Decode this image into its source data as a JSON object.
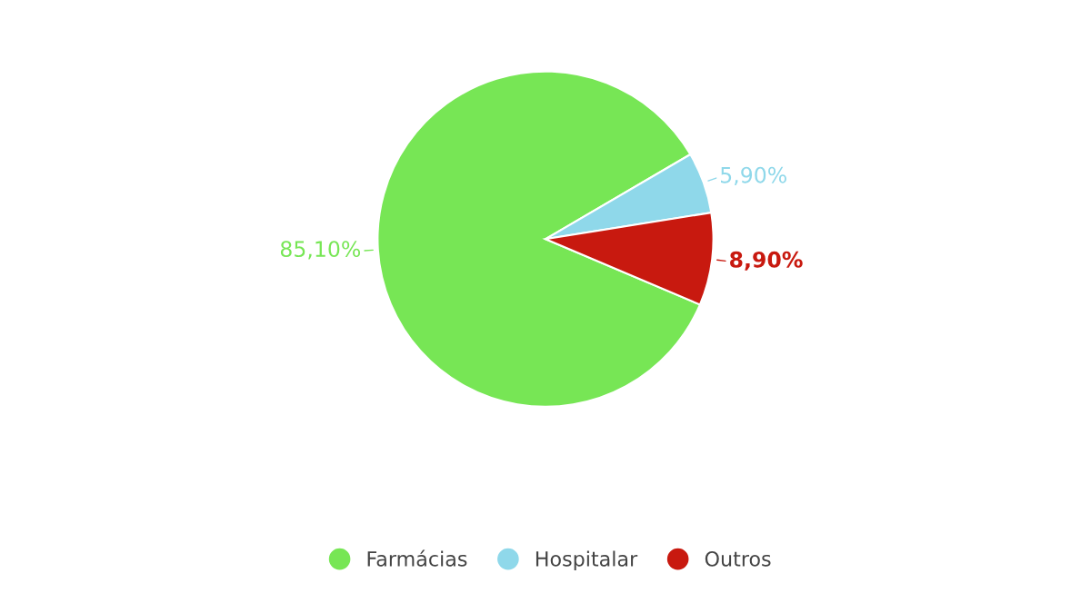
{
  "chart_data": {
    "type": "pie",
    "categories": [
      "Farmácias",
      "Hospitalar",
      "Outros"
    ],
    "values": [
      85.1,
      5.9,
      8.9
    ],
    "colors": [
      "#77e655",
      "#8fd8ea",
      "#c8190f"
    ],
    "value_labels": [
      "85,10%",
      "5,90%",
      "8,90%"
    ],
    "legend": "bottom"
  }
}
